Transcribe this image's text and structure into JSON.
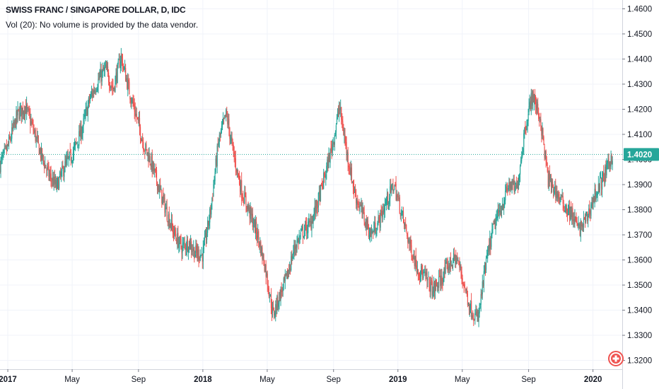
{
  "header": {
    "title": "SWISS FRANC / SINGAPORE DOLLAR, D, IDC",
    "volume_note": "Vol (20): No volume is provided by the data vendor."
  },
  "chart_data": {
    "type": "candlestick",
    "symbol": "CHF/SGD",
    "interval": "D",
    "source": "IDC",
    "ylim": [
      1.3165,
      1.4635
    ],
    "y_ticks": [
      "1.3200",
      "1.3300",
      "1.3400",
      "1.3500",
      "1.3600",
      "1.3700",
      "1.3800",
      "1.3900",
      "1.4000",
      "1.4100",
      "1.4200",
      "1.4300",
      "1.4400",
      "1.4500",
      "1.4600"
    ],
    "last_price": 1.402,
    "last_price_label": "1.4020",
    "x_range": [
      2016.96,
      2020.15
    ],
    "x_ticks": [
      {
        "label": "2017",
        "t": 2017.0,
        "major": true
      },
      {
        "label": "May",
        "t": 2017.33,
        "major": false
      },
      {
        "label": "Sep",
        "t": 2017.67,
        "major": false
      },
      {
        "label": "2018",
        "t": 2018.0,
        "major": true
      },
      {
        "label": "May",
        "t": 2018.33,
        "major": false
      },
      {
        "label": "Sep",
        "t": 2018.67,
        "major": false
      },
      {
        "label": "2019",
        "t": 2019.0,
        "major": true
      },
      {
        "label": "May",
        "t": 2019.33,
        "major": false
      },
      {
        "label": "Sep",
        "t": 2019.67,
        "major": false
      },
      {
        "label": "2020",
        "t": 2020.0,
        "major": true
      }
    ],
    "price_path": [
      [
        2016.96,
        1.398
      ],
      [
        2017.0,
        1.405
      ],
      [
        2017.05,
        1.418
      ],
      [
        2017.09,
        1.421
      ],
      [
        2017.13,
        1.412
      ],
      [
        2017.17,
        1.402
      ],
      [
        2017.21,
        1.394
      ],
      [
        2017.25,
        1.389
      ],
      [
        2017.29,
        1.397
      ],
      [
        2017.33,
        1.402
      ],
      [
        2017.38,
        1.412
      ],
      [
        2017.42,
        1.424
      ],
      [
        2017.46,
        1.431
      ],
      [
        2017.5,
        1.436
      ],
      [
        2017.54,
        1.428
      ],
      [
        2017.58,
        1.441
      ],
      [
        2017.62,
        1.428
      ],
      [
        2017.66,
        1.417
      ],
      [
        2017.7,
        1.405
      ],
      [
        2017.73,
        1.4
      ],
      [
        2017.77,
        1.39
      ],
      [
        2017.81,
        1.38
      ],
      [
        2017.85,
        1.371
      ],
      [
        2017.89,
        1.365
      ],
      [
        2017.93,
        1.367
      ],
      [
        2017.96,
        1.363
      ],
      [
        2018.0,
        1.362
      ],
      [
        2018.04,
        1.38
      ],
      [
        2018.08,
        1.407
      ],
      [
        2018.12,
        1.418
      ],
      [
        2018.16,
        1.401
      ],
      [
        2018.2,
        1.387
      ],
      [
        2018.24,
        1.379
      ],
      [
        2018.28,
        1.37
      ],
      [
        2018.32,
        1.357
      ],
      [
        2018.36,
        1.338
      ],
      [
        2018.39,
        1.345
      ],
      [
        2018.43,
        1.353
      ],
      [
        2018.47,
        1.365
      ],
      [
        2018.51,
        1.371
      ],
      [
        2018.55,
        1.374
      ],
      [
        2018.59,
        1.383
      ],
      [
        2018.63,
        1.395
      ],
      [
        2018.67,
        1.408
      ],
      [
        2018.7,
        1.421
      ],
      [
        2018.74,
        1.402
      ],
      [
        2018.78,
        1.386
      ],
      [
        2018.82,
        1.378
      ],
      [
        2018.86,
        1.37
      ],
      [
        2018.9,
        1.375
      ],
      [
        2018.94,
        1.383
      ],
      [
        2018.98,
        1.39
      ],
      [
        2019.02,
        1.378
      ],
      [
        2019.06,
        1.366
      ],
      [
        2019.1,
        1.357
      ],
      [
        2019.14,
        1.353
      ],
      [
        2019.18,
        1.348
      ],
      [
        2019.22,
        1.352
      ],
      [
        2019.26,
        1.358
      ],
      [
        2019.3,
        1.361
      ],
      [
        2019.33,
        1.353
      ],
      [
        2019.37,
        1.341
      ],
      [
        2019.41,
        1.336
      ],
      [
        2019.45,
        1.358
      ],
      [
        2019.49,
        1.373
      ],
      [
        2019.53,
        1.381
      ],
      [
        2019.57,
        1.39
      ],
      [
        2019.61,
        1.388
      ],
      [
        2019.65,
        1.412
      ],
      [
        2019.69,
        1.426
      ],
      [
        2019.73,
        1.416
      ],
      [
        2019.77,
        1.392
      ],
      [
        2019.81,
        1.387
      ],
      [
        2019.85,
        1.382
      ],
      [
        2019.89,
        1.378
      ],
      [
        2019.93,
        1.372
      ],
      [
        2019.97,
        1.377
      ],
      [
        2020.01,
        1.386
      ],
      [
        2020.05,
        1.392
      ],
      [
        2020.08,
        1.398
      ],
      [
        2020.1,
        1.402
      ]
    ],
    "colors": {
      "up": "#26a69a",
      "down": "#ef5350",
      "price_line": "#26a69a",
      "grid": "#f0f3fa"
    }
  },
  "branding": {
    "logo_icon": "tradingview-logo-icon"
  }
}
